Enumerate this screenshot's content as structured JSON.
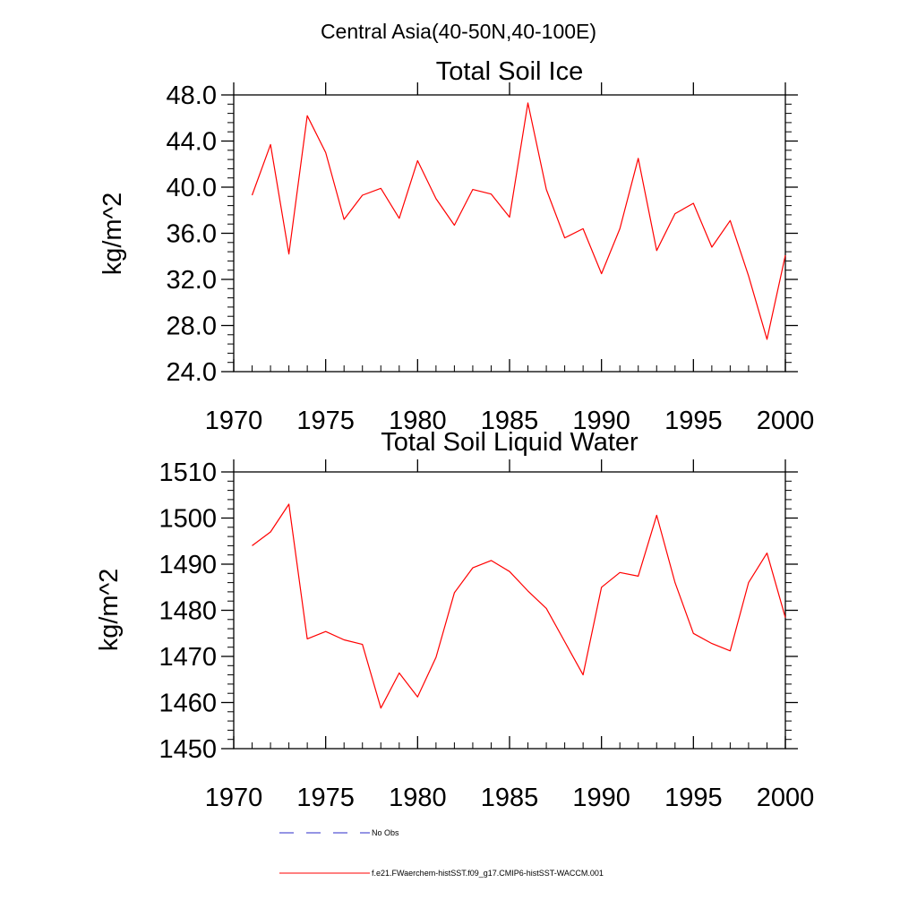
{
  "figure_title": "Central Asia(40-50N,40-100E)",
  "legend": {
    "placement": "bottom-center",
    "entries": [
      {
        "label": "No Obs",
        "color": "#2b2bc8",
        "dash": true
      },
      {
        "label": "f.e21.FWaerchem-histSST.f09_g17.CMIP6-histSST-WACCM.001",
        "color": "#ff0000",
        "dash": false
      }
    ]
  },
  "chart_data": [
    {
      "type": "line",
      "title": "Total Soil Ice",
      "xlabel": "",
      "ylabel": "kg/m^2",
      "xlim": [
        1970,
        2000
      ],
      "ylim": [
        24,
        48
      ],
      "xticks": [
        1970,
        1975,
        1980,
        1985,
        1990,
        1995,
        2000
      ],
      "xtick_labels": [
        "1970",
        "1975",
        "1980",
        "1985",
        "1990",
        "1995",
        "2000"
      ],
      "yticks": [
        24,
        28,
        32,
        36,
        40,
        44,
        48
      ],
      "ytick_labels": [
        "24.0",
        "28.0",
        "32.0",
        "36.0",
        "40.0",
        "44.0",
        "48.0"
      ],
      "grid": false,
      "x": [
        1971,
        1972,
        1973,
        1974,
        1975,
        1976,
        1977,
        1978,
        1979,
        1980,
        1981,
        1982,
        1983,
        1984,
        1985,
        1986,
        1987,
        1988,
        1989,
        1990,
        1991,
        1992,
        1993,
        1994,
        1995,
        1996,
        1997,
        1998,
        1999,
        2000
      ],
      "series": [
        {
          "name": "f.e21.FWaerchem-histSST.f09_g17.CMIP6-histSST-WACCM.001",
          "color": "#ff0000",
          "values": [
            39.3,
            43.7,
            34.2,
            46.2,
            43.0,
            37.2,
            39.3,
            39.9,
            37.3,
            42.3,
            39.0,
            36.7,
            39.8,
            39.4,
            37.4,
            47.3,
            39.8,
            35.6,
            36.4,
            32.5,
            36.4,
            42.5,
            34.5,
            37.7,
            38.6,
            34.8,
            37.1,
            32.3,
            26.8,
            34.1
          ]
        }
      ]
    },
    {
      "type": "line",
      "title": "Total Soil Liquid Water",
      "xlabel": "",
      "ylabel": "kg/m^2",
      "xlim": [
        1970,
        2000
      ],
      "ylim": [
        1450,
        1510
      ],
      "xticks": [
        1970,
        1975,
        1980,
        1985,
        1990,
        1995,
        2000
      ],
      "xtick_labels": [
        "1970",
        "1975",
        "1980",
        "1985",
        "1990",
        "1995",
        "2000"
      ],
      "yticks": [
        1450,
        1460,
        1470,
        1480,
        1490,
        1500,
        1510
      ],
      "ytick_labels": [
        "1450",
        "1460",
        "1470",
        "1480",
        "1490",
        "1500",
        "1510"
      ],
      "grid": false,
      "x": [
        1971,
        1972,
        1973,
        1974,
        1975,
        1976,
        1977,
        1978,
        1979,
        1980,
        1981,
        1982,
        1983,
        1984,
        1985,
        1986,
        1987,
        1988,
        1989,
        1990,
        1991,
        1992,
        1993,
        1994,
        1995,
        1996,
        1997,
        1998,
        1999,
        2000
      ],
      "series": [
        {
          "name": "f.e21.FWaerchem-histSST.f09_g17.CMIP6-histSST-WACCM.001",
          "color": "#ff0000",
          "values": [
            1494.0,
            1497.0,
            1503.0,
            1473.8,
            1475.4,
            1473.6,
            1472.6,
            1458.8,
            1466.4,
            1461.2,
            1469.8,
            1483.8,
            1489.2,
            1490.8,
            1488.4,
            1484.2,
            1480.4,
            1473.2,
            1466.0,
            1485.0,
            1488.2,
            1487.4,
            1500.6,
            1486.0,
            1475.0,
            1472.8,
            1471.2,
            1486.0,
            1492.4,
            1478.4
          ]
        }
      ]
    }
  ]
}
